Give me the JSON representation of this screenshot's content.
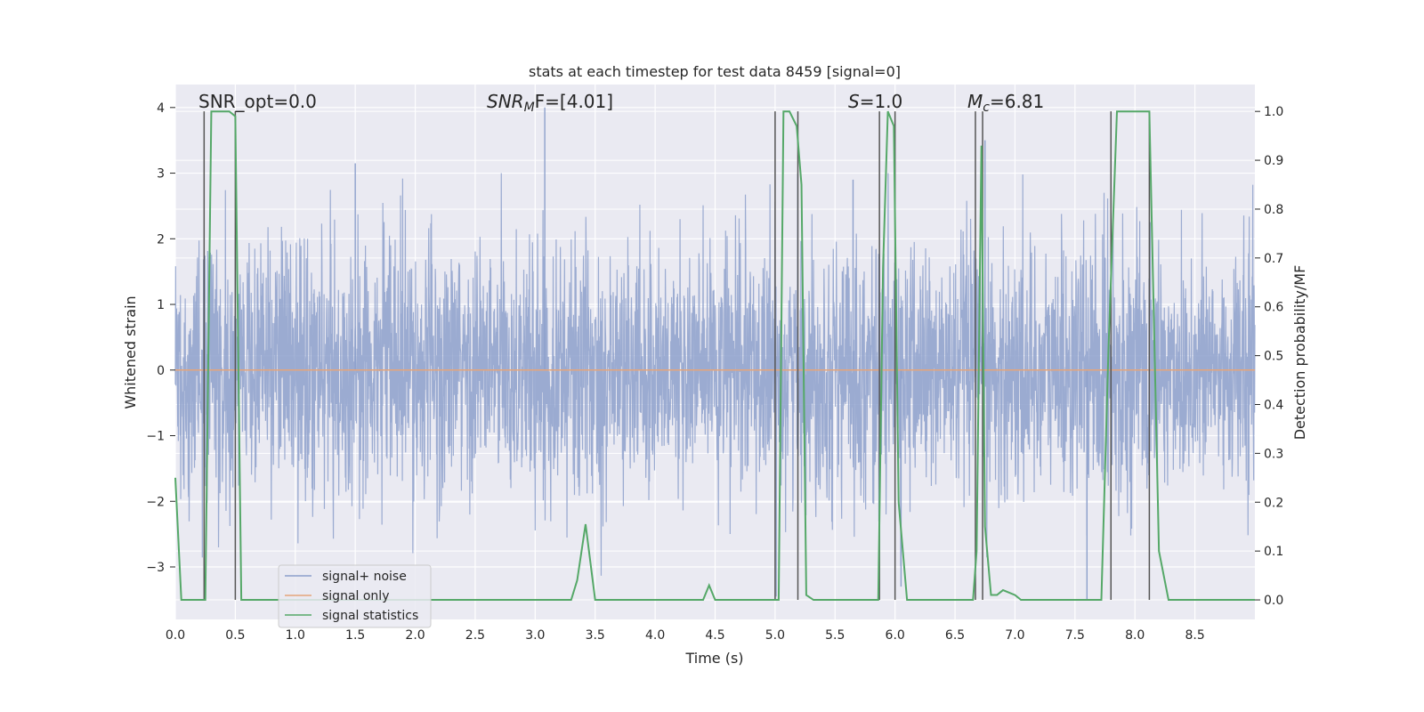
{
  "chart_data": {
    "type": "line",
    "title": "stats at each timestep for test data 8459 [signal=0]",
    "xlabel": "Time (s)",
    "ylabel_left": "Whitened strain",
    "ylabel_right": "Detection probability/MF",
    "xlim": [
      0.0,
      9.0
    ],
    "ylim_left": [
      -3.8,
      4.35
    ],
    "ylim_right": [
      -0.04,
      1.055
    ],
    "x_ticks": [
      "0.0",
      "0.5",
      "1.0",
      "1.5",
      "2.0",
      "2.5",
      "3.0",
      "3.5",
      "4.0",
      "4.5",
      "5.0",
      "5.5",
      "6.0",
      "6.5",
      "7.0",
      "7.5",
      "8.0",
      "8.5"
    ],
    "y_left_ticks": [
      "4",
      "3",
      "2",
      "1",
      "0",
      "−1",
      "−2",
      "−3"
    ],
    "y_right_ticks": [
      "1.0",
      "0.9",
      "0.8",
      "0.7",
      "0.6",
      "0.5",
      "0.4",
      "0.3",
      "0.2",
      "0.1",
      "0.0"
    ],
    "annotations": {
      "snr_opt": "SNR_opt=0.0",
      "snr_mf_main": "SNR",
      "snr_mf_sub": "M",
      "snr_mf_rest": "F=[4.01]",
      "s_var": "S",
      "s_rest": "=1.0",
      "mc_main": "M",
      "mc_sub": "c",
      "mc_rest": "=6.81"
    },
    "series": [
      {
        "name": "signal+ noise",
        "color": "#8da0cb",
        "description": "whitened noise, approx gaussian with amplitude ~1.7, range about -3.5 to 4.0",
        "peaks": [
          [
            1.5,
            3.15
          ],
          [
            3.08,
            4.0
          ],
          [
            5.65,
            2.9
          ],
          [
            6.75,
            3.5
          ],
          [
            6.05,
            -3.3
          ],
          [
            7.6,
            -3.5
          ]
        ]
      },
      {
        "name": "signal only",
        "color": "#e5a57a",
        "x": [
          0.0,
          9.0
        ],
        "y": [
          0.0,
          0.0
        ]
      },
      {
        "name": "signal statistics",
        "color": "#55a868",
        "x": [
          0.0,
          0.05,
          0.1,
          0.15,
          0.2,
          0.25,
          0.3,
          0.35,
          0.4,
          0.45,
          0.5,
          0.55,
          0.6,
          0.65,
          0.7,
          3.2,
          3.3,
          3.35,
          3.42,
          3.5,
          3.55,
          3.6,
          4.0,
          4.3,
          4.4,
          4.45,
          4.5,
          4.6,
          4.9,
          5.0,
          5.03,
          5.07,
          5.12,
          5.18,
          5.22,
          5.26,
          5.32,
          5.4,
          5.6,
          5.7,
          5.86,
          5.9,
          5.94,
          5.99,
          6.03,
          6.1,
          6.15,
          6.2,
          6.3,
          6.65,
          6.68,
          6.72,
          6.75,
          6.8,
          6.85,
          6.9,
          7.0,
          7.05,
          7.1,
          7.15,
          7.2,
          7.72,
          7.78,
          7.85,
          8.12,
          8.2,
          8.28,
          8.35,
          9.0
        ],
        "y": [
          0.25,
          0.0,
          0.0,
          0.0,
          0.0,
          0.0,
          1.0,
          1.0,
          1.0,
          1.0,
          0.99,
          0.0,
          0.0,
          0.0,
          0.0,
          0.0,
          0.0,
          0.04,
          0.155,
          0.0,
          0.0,
          0.0,
          0.0,
          0.0,
          0.0,
          0.03,
          0.0,
          0.0,
          0.0,
          0.0,
          0.0,
          1.0,
          1.0,
          0.97,
          0.85,
          0.01,
          0.0,
          0.0,
          0.0,
          0.0,
          0.0,
          0.68,
          1.0,
          0.97,
          0.2,
          0.0,
          0.0,
          0.0,
          0.0,
          0.0,
          0.1,
          0.93,
          0.15,
          0.01,
          0.01,
          0.02,
          0.01,
          0.0,
          0.0,
          0.0,
          0.0,
          0.0,
          0.52,
          1.0,
          1.0,
          0.1,
          0.0,
          0.0,
          0.0
        ]
      }
    ],
    "vertical_lines": [
      0.24,
      0.5,
      5.0,
      5.19,
      5.87,
      6.0,
      6.67,
      6.73,
      7.8,
      8.12
    ],
    "legend": {
      "position": "lower-left",
      "entries": [
        "signal+ noise",
        "signal only",
        "signal statistics"
      ]
    }
  }
}
